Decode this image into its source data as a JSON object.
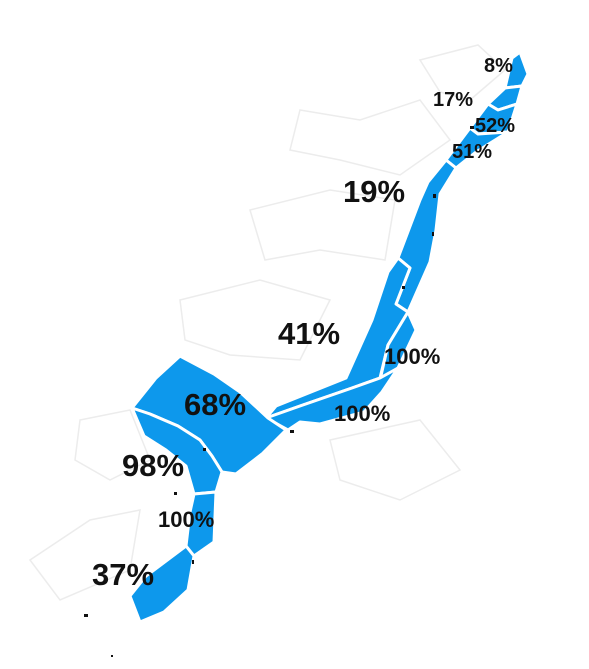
{
  "map": {
    "fill_color": "#0d98ec",
    "background": "#ffffff",
    "regions": [
      {
        "id": "r1",
        "label": "8%"
      },
      {
        "id": "r2",
        "label": "17%"
      },
      {
        "id": "r3",
        "label": "52%"
      },
      {
        "id": "r4",
        "label": "51%"
      },
      {
        "id": "r5",
        "label": "19%"
      },
      {
        "id": "r6",
        "label": "41%"
      },
      {
        "id": "r7",
        "label": "100%"
      },
      {
        "id": "r8",
        "label": "100%"
      },
      {
        "id": "r9",
        "label": "68%"
      },
      {
        "id": "r10",
        "label": "98%"
      },
      {
        "id": "r11",
        "label": "100%"
      },
      {
        "id": "r12",
        "label": "37%"
      }
    ]
  }
}
